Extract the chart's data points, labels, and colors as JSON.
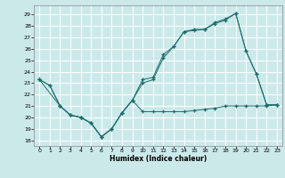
{
  "title": "",
  "xlabel": "Humidex (Indice chaleur)",
  "bg_color": "#cce9ea",
  "line_color": "#1a6b6b",
  "grid_color": "#ffffff",
  "xlim": [
    -0.5,
    23.5
  ],
  "ylim": [
    17.5,
    29.8
  ],
  "xticks": [
    0,
    1,
    2,
    3,
    4,
    5,
    6,
    7,
    8,
    9,
    10,
    11,
    12,
    13,
    14,
    15,
    16,
    17,
    18,
    19,
    20,
    21,
    22,
    23
  ],
  "yticks": [
    18,
    19,
    20,
    21,
    22,
    23,
    24,
    25,
    26,
    27,
    28,
    29
  ],
  "line1_x": [
    0,
    1,
    2,
    3,
    4,
    5,
    6,
    7,
    8,
    9,
    10,
    11,
    12,
    13,
    14,
    15,
    16,
    17,
    18,
    19,
    20,
    21,
    22,
    23
  ],
  "line1_y": [
    23.3,
    22.8,
    21.0,
    20.2,
    20.0,
    19.5,
    18.3,
    19.0,
    20.4,
    21.5,
    20.5,
    20.5,
    20.5,
    20.5,
    20.5,
    20.6,
    20.7,
    20.8,
    21.0,
    21.0,
    21.0,
    21.0,
    21.0,
    21.1
  ],
  "line2_x": [
    0,
    1,
    2,
    3,
    4,
    5,
    6,
    7,
    8,
    9,
    10,
    11,
    12,
    13,
    14,
    15,
    16,
    17,
    18,
    19,
    20,
    21,
    22,
    23
  ],
  "line2_y": [
    23.3,
    22.8,
    21.0,
    20.2,
    20.0,
    19.5,
    18.3,
    19.0,
    20.4,
    21.5,
    23.0,
    23.3,
    25.2,
    26.2,
    27.5,
    27.6,
    27.7,
    28.2,
    28.5,
    29.1,
    25.8,
    23.8,
    21.1,
    21.1
  ],
  "line3_x": [
    0,
    2,
    3,
    4,
    5,
    6,
    7,
    8,
    9,
    10,
    11,
    12,
    13,
    14,
    15,
    16,
    17,
    18,
    19,
    20,
    21,
    22,
    23
  ],
  "line3_y": [
    23.3,
    21.0,
    20.2,
    20.0,
    19.5,
    18.3,
    19.0,
    20.4,
    21.5,
    23.3,
    23.5,
    25.5,
    26.2,
    27.5,
    27.7,
    27.7,
    28.3,
    28.6,
    29.1,
    25.8,
    23.8,
    21.1,
    21.1
  ]
}
